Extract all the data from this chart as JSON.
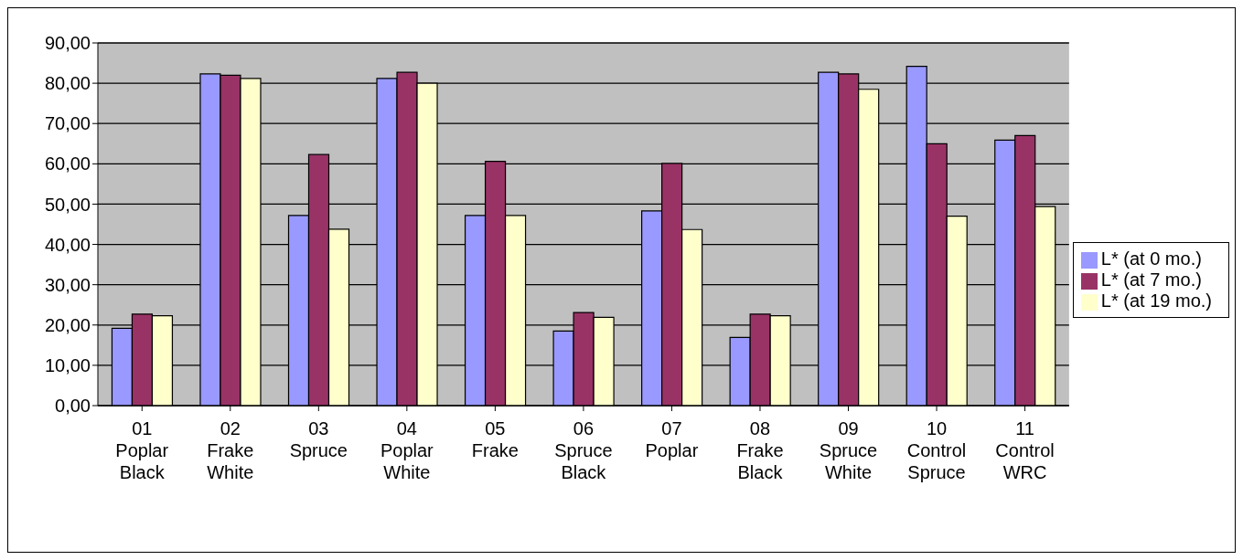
{
  "chart_data": {
    "type": "bar",
    "categories": [
      "01\nPoplar\nBlack",
      "02\nFrake\nWhite",
      "03\nSpruce",
      "04\nPoplar\nWhite",
      "05\nFrake",
      "06\nSpruce\nBlack",
      "07\nPoplar",
      "08\nFrake\nBlack",
      "09\nSpruce\nWhite",
      "10\nControl\nSpruce",
      "11\nControl\nWRC"
    ],
    "series": [
      {
        "name": "L* (at 0 mo.)",
        "color": "#9999ff",
        "values": [
          19.2,
          82.3,
          47.2,
          81.2,
          47.2,
          18.5,
          48.3,
          16.9,
          82.7,
          84.2,
          65.9
        ]
      },
      {
        "name": "L* (at 7 mo.)",
        "color": "#993366",
        "values": [
          22.7,
          82.0,
          62.3,
          82.7,
          60.6,
          23.1,
          60.1,
          22.7,
          82.3,
          65.0,
          67.0
        ]
      },
      {
        "name": "L* (at 19 mo.)",
        "color": "#ffffcc",
        "values": [
          22.3,
          81.2,
          43.8,
          80.0,
          47.2,
          21.9,
          43.7,
          22.3,
          78.5,
          47.0,
          49.4
        ]
      }
    ],
    "ylim": [
      0,
      90
    ],
    "yticks": [
      {
        "value": 0,
        "label": "0,00"
      },
      {
        "value": 10,
        "label": "10,00"
      },
      {
        "value": 20,
        "label": "20,00"
      },
      {
        "value": 30,
        "label": "30,00"
      },
      {
        "value": 40,
        "label": "40,00"
      },
      {
        "value": 50,
        "label": "50,00"
      },
      {
        "value": 60,
        "label": "60,00"
      },
      {
        "value": 70,
        "label": "70,00"
      },
      {
        "value": 80,
        "label": "80,00"
      },
      {
        "value": 90,
        "label": "90,00"
      }
    ],
    "grid": "y",
    "legend": "right"
  }
}
